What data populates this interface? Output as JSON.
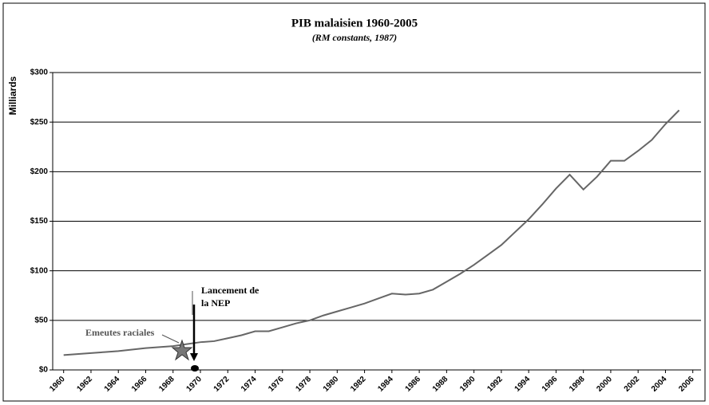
{
  "chart_data": {
    "type": "line",
    "title": "PIB malaisien 1960-2005",
    "subtitle": "(RM constants, 1987)",
    "y_label": "Milliards",
    "x": [
      1960,
      1961,
      1962,
      1963,
      1964,
      1965,
      1966,
      1967,
      1968,
      1969,
      1970,
      1971,
      1972,
      1973,
      1974,
      1975,
      1976,
      1977,
      1978,
      1979,
      1980,
      1981,
      1982,
      1983,
      1984,
      1985,
      1986,
      1987,
      1988,
      1989,
      1990,
      1991,
      1992,
      1993,
      1994,
      1995,
      1996,
      1997,
      1998,
      1999,
      2000,
      2001,
      2002,
      2003,
      2004,
      2005
    ],
    "series": [
      {
        "color": "#666666",
        "values": [
          15,
          16,
          17,
          18,
          19,
          20.5,
          22,
          23,
          24,
          26,
          28,
          29,
          32,
          35,
          39,
          39,
          43,
          47,
          50,
          55,
          59,
          63,
          67,
          72,
          77,
          76,
          77,
          81,
          89,
          97,
          106,
          116,
          126,
          139,
          152,
          167,
          183,
          197,
          182,
          195,
          211,
          211,
          221,
          232,
          248,
          262
        ]
      }
    ],
    "xlim": [
      1959.2,
      2006.6
    ],
    "xticks": [
      1960,
      1962,
      1964,
      1966,
      1968,
      1970,
      1972,
      1974,
      1976,
      1978,
      1980,
      1982,
      1984,
      1986,
      1988,
      1990,
      1992,
      1994,
      1996,
      1998,
      2000,
      2002,
      2004,
      2006
    ],
    "ylim": [
      0,
      300
    ],
    "yticks": [
      {
        "value": 0,
        "label": "$0"
      },
      {
        "value": 50,
        "label": "$50"
      },
      {
        "value": 100,
        "label": "$100"
      },
      {
        "value": 150,
        "label": "$150"
      },
      {
        "value": 200,
        "label": "$200"
      },
      {
        "value": 250,
        "label": "$250"
      },
      {
        "value": 300,
        "label": "$300"
      }
    ],
    "grid": true,
    "annotations": [
      "Emeutes raciales",
      "Lancement de",
      "la NEP"
    ]
  }
}
